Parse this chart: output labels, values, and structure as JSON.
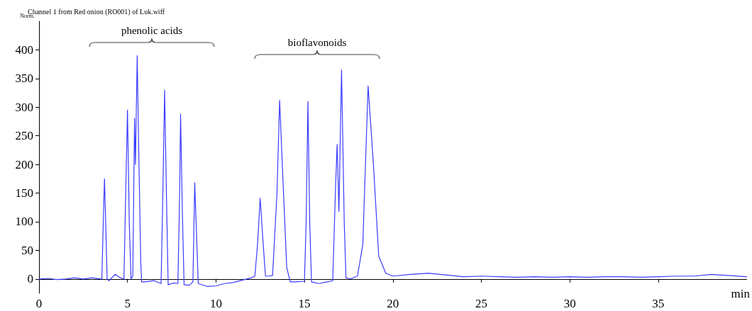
{
  "chart_data": {
    "type": "line",
    "title": "Channel 1 from Red onion (RO001) of Luk.wiff",
    "xlabel": "min",
    "ylabel": "Norm.",
    "x": [
      0,
      0.5,
      1,
      1.5,
      2,
      2.5,
      3,
      3.5,
      3.55,
      3.65,
      3.7,
      3.75,
      3.85,
      3.95,
      4.3,
      4.6,
      4.8,
      4.9,
      5.0,
      5.1,
      5.2,
      5.3,
      5.4,
      5.45,
      5.55,
      5.65,
      5.75,
      5.8,
      6.0,
      6.5,
      6.9,
      7.0,
      7.1,
      7.2,
      7.3,
      7.6,
      7.85,
      7.95,
      8.0,
      8.1,
      8.2,
      8.5,
      8.7,
      8.8,
      8.9,
      9.0,
      9.5,
      10,
      10.5,
      11,
      11.5,
      12,
      12.2,
      12.35,
      12.5,
      12.65,
      12.8,
      13,
      13.2,
      13.45,
      13.6,
      13.75,
      14.0,
      14.2,
      14.5,
      15,
      15.1,
      15.2,
      15.3,
      15.4,
      15.8,
      16.3,
      16.6,
      16.75,
      16.85,
      16.95,
      17.0,
      17.1,
      17.25,
      17.35,
      17.6,
      18.0,
      18.3,
      18.6,
      18.9,
      19.2,
      19.6,
      20,
      21,
      22,
      23,
      24,
      25,
      26,
      27,
      28,
      29,
      30,
      31,
      32,
      33,
      34,
      35,
      36,
      37,
      38,
      39,
      40
    ],
    "series": [
      {
        "color": "#3b3bff",
        "values": [
          0,
          1,
          -1,
          0,
          2,
          0,
          2,
          0,
          0,
          120,
          175,
          120,
          0,
          -3,
          8,
          2,
          0,
          150,
          295,
          100,
          0,
          5,
          280,
          200,
          390,
          200,
          30,
          -5,
          -5,
          -3,
          -8,
          150,
          330,
          150,
          -10,
          -7,
          -8,
          150,
          288,
          120,
          -10,
          -11,
          -5,
          168,
          80,
          -8,
          -13,
          -12,
          -8,
          -6,
          -2,
          2,
          5,
          60,
          141,
          70,
          5,
          5,
          6,
          150,
          312,
          200,
          20,
          -5,
          -5,
          -4,
          100,
          310,
          100,
          -5,
          -8,
          -5,
          -3,
          150,
          235,
          118,
          200,
          365,
          100,
          2,
          0,
          5,
          60,
          337,
          200,
          40,
          10,
          5,
          8,
          10,
          7,
          4,
          5,
          4,
          3,
          4,
          3,
          4,
          3,
          4,
          4,
          3,
          4,
          5,
          5,
          8,
          6,
          4
        ]
      }
    ],
    "xlim": [
      0,
      40
    ],
    "xticks": [
      0,
      5,
      10,
      15,
      20,
      25,
      30,
      35
    ],
    "ylim": [
      -25,
      450
    ],
    "yticks": [
      0,
      50,
      100,
      150,
      200,
      250,
      300,
      350,
      400
    ],
    "annotations": [
      "phenolic acids",
      "bioflavonoids"
    ],
    "grid": false,
    "marker": "none",
    "line_style": "solid"
  }
}
